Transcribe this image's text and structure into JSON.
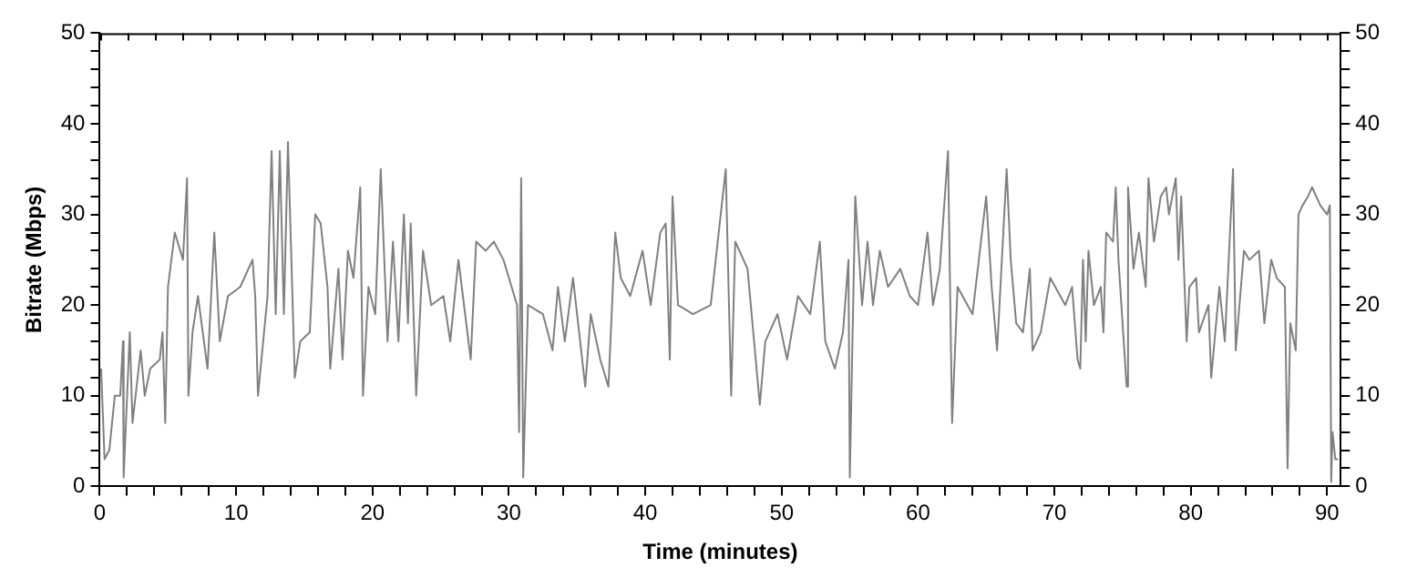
{
  "chart_data": {
    "type": "line",
    "xlabel": "Time (minutes)",
    "ylabel": "Bitrate (Mbps)",
    "xlim": [
      0,
      91
    ],
    "ylim": [
      0,
      50
    ],
    "y2lim": [
      0,
      50
    ],
    "xticks": [
      0,
      {
        "value": 2,
        "label": null
      },
      {
        "value": 4,
        "label": null
      },
      {
        "value": 6,
        "label": null
      },
      {
        "value": 8,
        "label": null
      },
      10,
      {
        "value": 12,
        "label": null
      },
      {
        "value": 14,
        "label": null
      },
      {
        "value": 16,
        "label": null
      },
      {
        "value": 18,
        "label": null
      },
      20,
      {
        "value": 22,
        "label": null
      },
      {
        "value": 24,
        "label": null
      },
      {
        "value": 26,
        "label": null
      },
      {
        "value": 28,
        "label": null
      },
      30,
      {
        "value": 32,
        "label": null
      },
      {
        "value": 34,
        "label": null
      },
      {
        "value": 36,
        "label": null
      },
      {
        "value": 38,
        "label": null
      },
      40,
      {
        "value": 42,
        "label": null
      },
      {
        "value": 44,
        "label": null
      },
      {
        "value": 46,
        "label": null
      },
      {
        "value": 48,
        "label": null
      },
      50,
      {
        "value": 52,
        "label": null
      },
      {
        "value": 54,
        "label": null
      },
      {
        "value": 56,
        "label": null
      },
      {
        "value": 58,
        "label": null
      },
      60,
      {
        "value": 62,
        "label": null
      },
      {
        "value": 64,
        "label": null
      },
      {
        "value": 66,
        "label": null
      },
      {
        "value": 68,
        "label": null
      },
      70,
      {
        "value": 72,
        "label": null
      },
      {
        "value": 74,
        "label": null
      },
      {
        "value": 76,
        "label": null
      },
      {
        "value": 78,
        "label": null
      },
      80,
      {
        "value": 82,
        "label": null
      },
      {
        "value": 84,
        "label": null
      },
      {
        "value": 86,
        "label": null
      },
      {
        "value": 88,
        "label": null
      },
      90
    ],
    "yticks": [
      0,
      {
        "value": 2,
        "label": null
      },
      {
        "value": 4,
        "label": null
      },
      {
        "value": 6,
        "label": null
      },
      {
        "value": 8,
        "label": null
      },
      10,
      {
        "value": 12,
        "label": null
      },
      {
        "value": 14,
        "label": null
      },
      {
        "value": 16,
        "label": null
      },
      {
        "value": 18,
        "label": null
      },
      20,
      {
        "value": 22,
        "label": null
      },
      {
        "value": 24,
        "label": null
      },
      {
        "value": 26,
        "label": null
      },
      {
        "value": 28,
        "label": null
      },
      30,
      {
        "value": 32,
        "label": null
      },
      {
        "value": 34,
        "label": null
      },
      {
        "value": 36,
        "label": null
      },
      {
        "value": 38,
        "label": null
      },
      40,
      {
        "value": 42,
        "label": null
      },
      {
        "value": 44,
        "label": null
      },
      {
        "value": 46,
        "label": null
      },
      {
        "value": 48,
        "label": null
      },
      50
    ],
    "y2ticks": [
      0,
      {
        "value": 2,
        "label": null
      },
      {
        "value": 4,
        "label": null
      },
      {
        "value": 6,
        "label": null
      },
      {
        "value": 8,
        "label": null
      },
      10,
      {
        "value": 12,
        "label": null
      },
      {
        "value": 14,
        "label": null
      },
      {
        "value": 16,
        "label": null
      },
      {
        "value": 18,
        "label": null
      },
      20,
      {
        "value": 22,
        "label": null
      },
      {
        "value": 24,
        "label": null
      },
      {
        "value": 26,
        "label": null
      },
      {
        "value": 28,
        "label": null
      },
      30,
      {
        "value": 32,
        "label": null
      },
      {
        "value": 34,
        "label": null
      },
      {
        "value": 36,
        "label": null
      },
      {
        "value": 38,
        "label": null
      },
      40,
      {
        "value": 42,
        "label": null
      },
      {
        "value": 44,
        "label": null
      },
      {
        "value": 46,
        "label": null
      },
      {
        "value": 48,
        "label": null
      },
      50
    ],
    "grid": false,
    "legend": false,
    "marker": "none",
    "line_style": "solid",
    "series": [
      {
        "color": "#808080",
        "x": [
          0.1,
          0.35,
          0.7,
          1.1,
          1.5,
          1.7,
          1.75,
          2.2,
          2.4,
          3,
          3.3,
          3.7,
          4.4,
          4.6,
          4.8,
          5,
          5.5,
          6.1,
          6.4,
          6.5,
          6.8,
          7.2,
          7.9,
          8.4,
          8.8,
          9.4,
          10.3,
          11.2,
          11.4,
          11.6,
          12.3,
          12.6,
          12.9,
          13.2,
          13.5,
          13.8,
          14.3,
          14.7,
          15.4,
          15.8,
          16.2,
          16.7,
          16.9,
          17.5,
          17.8,
          18.2,
          18.6,
          19.1,
          19.3,
          19.7,
          20.2,
          20.6,
          21.1,
          21.5,
          21.9,
          22.3,
          22.6,
          22.8,
          23.2,
          23.7,
          24.3,
          25.2,
          25.7,
          26.3,
          27.2,
          27.6,
          28.3,
          28.9,
          29.6,
          30,
          30.6,
          30.75,
          30.9,
          31.05,
          31.4,
          32.5,
          33.2,
          33.6,
          34.1,
          34.7,
          35.6,
          36,
          36.7,
          37.3,
          37.8,
          38.2,
          38.9,
          39.8,
          40.4,
          41.1,
          41.5,
          41.8,
          42,
          42.4,
          43.5,
          44.8,
          45.9,
          46.3,
          46.6,
          47.5,
          48.4,
          48.8,
          49.7,
          50.4,
          51.2,
          52.1,
          52.8,
          53.2,
          53.9,
          54.5,
          54.9,
          55,
          55.4,
          55.9,
          56.3,
          56.7,
          57.2,
          57.8,
          58.7,
          59.4,
          60,
          60.7,
          61.1,
          61.6,
          62.2,
          62.5,
          62.9,
          64,
          65,
          65.4,
          65.8,
          66.5,
          66.8,
          67.2,
          67.7,
          68.2,
          68.4,
          69,
          69.7,
          70.8,
          71.3,
          71.7,
          71.9,
          72.1,
          72.3,
          72.5,
          72.9,
          73.4,
          73.6,
          73.8,
          74.3,
          74.5,
          74.7,
          75.3,
          75.4,
          75.8,
          76.2,
          76.7,
          76.9,
          77.3,
          77.8,
          78.2,
          78.4,
          78.9,
          79.1,
          79.3,
          79.5,
          79.7,
          79.9,
          80.4,
          80.6,
          81.3,
          81.5,
          82.1,
          82.5,
          83.1,
          83.3,
          83.9,
          84.3,
          85,
          85.4,
          85.9,
          86.3,
          86.9,
          87.1,
          87.3,
          87.7,
          87.9,
          88.2,
          88.6,
          88.9,
          89.5,
          90,
          90.2,
          90.3,
          90.4,
          90.6,
          90.8
        ],
        "values": [
          13,
          3,
          4,
          10,
          10,
          16,
          1,
          17,
          7,
          15,
          10,
          13,
          14,
          17,
          7,
          22,
          28,
          25,
          34,
          10,
          17,
          21,
          13,
          28,
          16,
          21,
          22,
          25,
          21,
          10,
          21,
          37,
          19,
          37,
          19,
          38,
          12,
          16,
          17,
          30,
          29,
          22,
          13,
          24,
          14,
          26,
          23,
          33,
          10,
          22,
          19,
          35,
          16,
          27,
          16,
          30,
          18,
          29,
          10,
          26,
          20,
          21,
          16,
          25,
          14,
          27,
          26,
          27,
          25,
          23,
          20,
          6,
          34,
          1,
          20,
          19,
          15,
          22,
          16,
          23,
          11,
          19,
          14,
          11,
          28,
          23,
          21,
          26,
          20,
          28,
          29,
          14,
          32,
          20,
          19,
          20,
          35,
          10,
          27,
          24,
          9,
          16,
          19,
          14,
          21,
          19,
          27,
          16,
          13,
          17,
          25,
          1,
          32,
          20,
          27,
          20,
          26,
          22,
          24,
          21,
          20,
          28,
          20,
          24,
          37,
          7,
          22,
          19,
          32,
          22,
          15,
          35,
          25,
          18,
          17,
          24,
          15,
          17,
          23,
          20,
          22,
          14,
          13,
          25,
          16,
          26,
          20,
          22,
          17,
          28,
          27,
          33,
          25,
          11,
          33,
          24,
          28,
          22,
          34,
          27,
          32,
          33,
          30,
          34,
          25,
          32,
          24,
          16,
          22,
          23,
          17,
          20,
          12,
          22,
          16,
          35,
          15,
          26,
          25,
          26,
          18,
          25,
          23,
          22,
          2,
          18,
          15,
          30,
          31,
          32,
          33,
          31,
          30,
          31,
          0.5,
          6,
          3,
          3
        ]
      }
    ]
  }
}
